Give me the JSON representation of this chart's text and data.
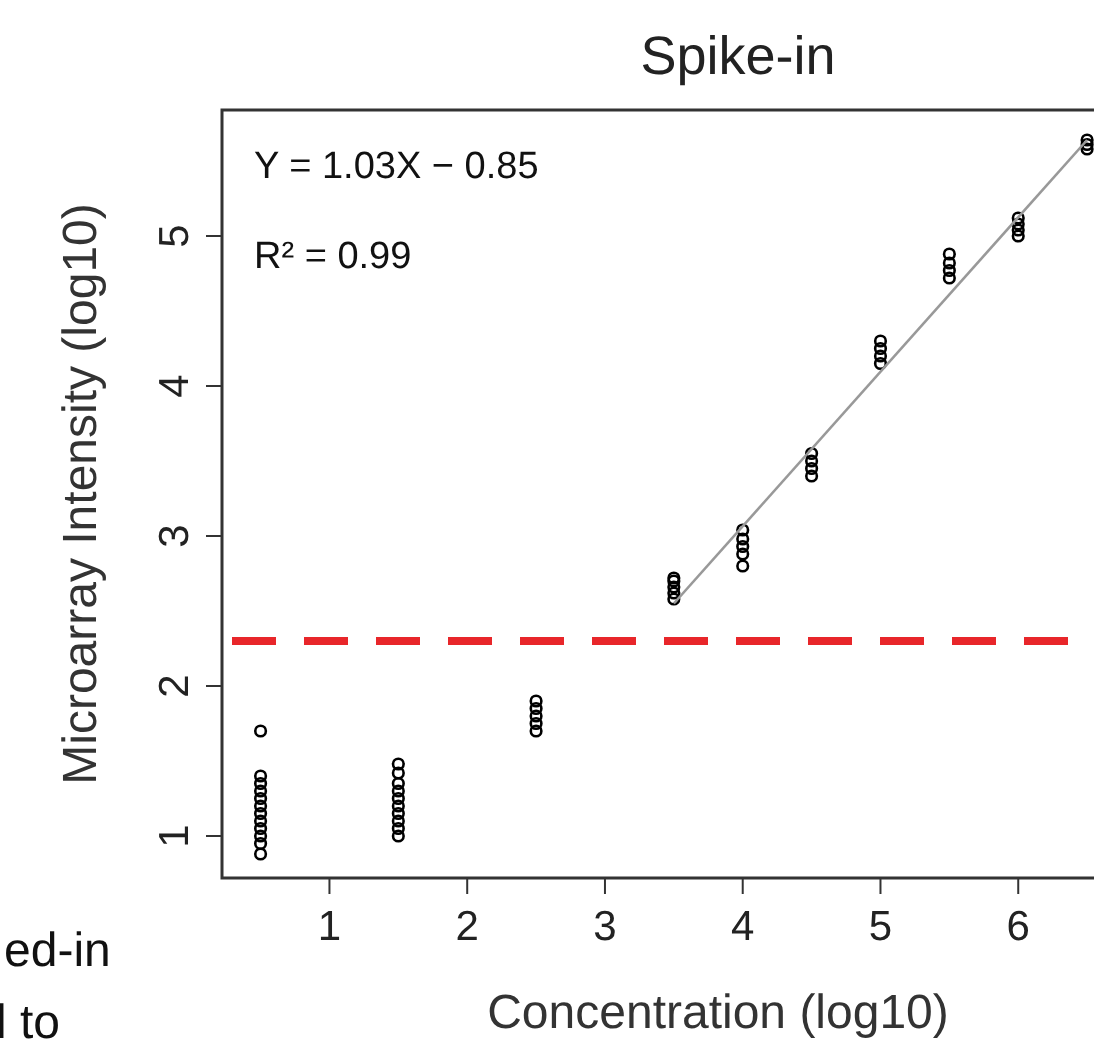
{
  "chart_data": {
    "type": "scatter",
    "title": "Spike-in",
    "xlabel": "Concentration (log10)",
    "ylabel": "Microarray Intensity (log10)",
    "xlim": [
      0.22,
      6.55
    ],
    "ylim": [
      0.72,
      5.84
    ],
    "xticks": [
      1,
      2,
      3,
      4,
      5,
      6
    ],
    "yticks": [
      1,
      2,
      3,
      4,
      5
    ],
    "grid": false,
    "marker": "circle",
    "annotations": [
      "Y = 1.03X − 0.85",
      "R² = 0.99",
      "ed-in",
      "l to"
    ],
    "ref_lines": [
      {
        "axis": "y",
        "value": 2.3,
        "color": "#e8262a",
        "line_style": "dashed"
      }
    ],
    "series": [
      {
        "color": "#000000",
        "x": [
          0.5,
          0.5,
          0.5,
          0.5,
          0.5,
          0.5,
          0.5,
          0.5,
          0.5,
          0.5,
          0.5,
          0.5,
          1.5,
          1.5,
          1.5,
          1.5,
          1.5,
          1.5,
          1.5,
          1.5,
          1.5,
          1.5,
          2.5,
          2.5,
          2.5,
          2.5,
          2.5,
          3.5,
          3.5,
          3.5,
          3.5,
          3.5,
          4,
          4,
          4,
          4,
          4,
          4.5,
          4.5,
          4.5,
          4.5,
          5,
          5,
          5,
          5,
          5.5,
          5.5,
          5.5,
          5.5,
          6,
          6,
          6,
          6,
          6.5,
          6.5,
          6.5
        ],
        "values": [
          0.88,
          0.95,
          1.0,
          1.05,
          1.1,
          1.15,
          1.2,
          1.25,
          1.3,
          1.35,
          1.4,
          1.7,
          1.0,
          1.05,
          1.1,
          1.15,
          1.2,
          1.25,
          1.3,
          1.35,
          1.42,
          1.48,
          1.7,
          1.75,
          1.8,
          1.85,
          1.9,
          2.58,
          2.62,
          2.66,
          2.7,
          2.72,
          2.8,
          2.88,
          2.93,
          2.98,
          3.04,
          3.4,
          3.45,
          3.5,
          3.55,
          4.15,
          4.2,
          4.25,
          4.3,
          4.72,
          4.77,
          4.82,
          4.88,
          5.0,
          5.04,
          5.08,
          5.12,
          5.58,
          5.61,
          5.64
        ]
      },
      {
        "type": "line",
        "marker": "none",
        "color": "#999999",
        "x": [
          3.5,
          6.5
        ],
        "values": [
          2.55,
          5.64
        ]
      }
    ]
  }
}
